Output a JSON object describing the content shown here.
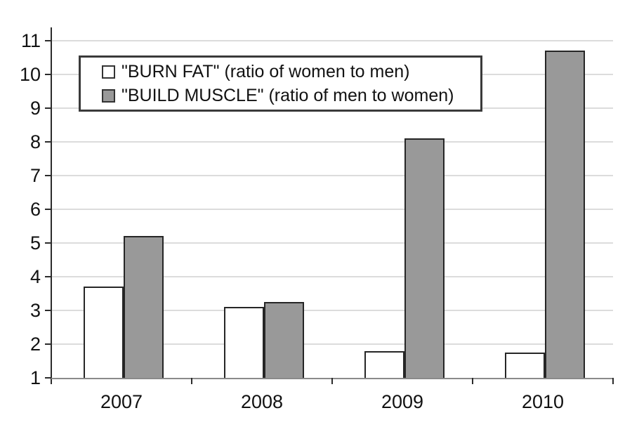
{
  "chart_data": {
    "type": "bar",
    "title": "",
    "categories": [
      "2007",
      "2008",
      "2009",
      "2010"
    ],
    "series": [
      {
        "name": "\"BURN FAT\" (ratio of women to men)",
        "values": [
          3.7,
          3.1,
          1.8,
          1.75
        ],
        "fill": "#ffffff"
      },
      {
        "name": "\"BUILD MUSCLE\" (ratio of men to women)",
        "values": [
          5.2,
          3.25,
          8.1,
          10.7
        ],
        "fill": "#999999"
      }
    ],
    "xlabel": "",
    "ylabel": "",
    "ylim": [
      1,
      11
    ],
    "yticks": [
      1,
      2,
      3,
      4,
      5,
      6,
      7,
      8,
      9,
      10,
      11
    ],
    "grid": true,
    "legend_position": "top-left",
    "colors": {
      "bar_border": "#262626",
      "gridline": "#dcdcdc",
      "baseline": "#8a8a8a",
      "axis": "#2b2b2b",
      "text": "#121212",
      "legend_border": "#3a3a3a",
      "background": "#ffffff"
    }
  }
}
